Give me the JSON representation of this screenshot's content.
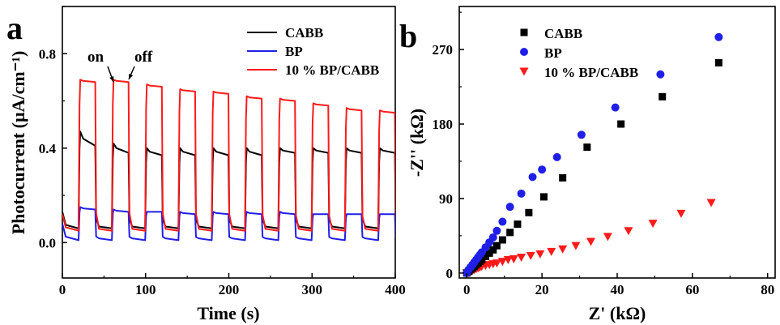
{
  "colors": {
    "black": "#000000",
    "blue": "#1f1fe8",
    "red": "#ff1a1a"
  },
  "chart_data": [
    {
      "panel_label": "a",
      "type": "line",
      "xlabel": "Time (s)",
      "ylabel": "Photocurrent (µA/cm⁻¹)",
      "xlim": [
        0,
        400
      ],
      "ylim": [
        -0.15,
        1.0
      ],
      "x_ticks": [
        0,
        100,
        200,
        300,
        400
      ],
      "y_ticks": [
        0.0,
        0.4,
        0.8
      ],
      "x_tick_labels": [
        "0",
        "100",
        "200",
        "300",
        "400"
      ],
      "y_tick_labels": [
        "0.0",
        "0.4",
        "0.8"
      ],
      "legend_position": "top-right",
      "annotations": [
        {
          "text": "on",
          "x": 62,
          "y": 0.69
        },
        {
          "text": "off",
          "x": 79,
          "y": 0.69
        }
      ],
      "cycles": {
        "on_times": [
          20,
          60,
          100,
          140,
          180,
          220,
          260,
          300,
          340,
          380
        ],
        "on_duration": 20
      },
      "series": [
        {
          "name": "CABB",
          "color": "black",
          "dark": 0.06,
          "light_peak": [
            0.47,
            0.42,
            0.4,
            0.4,
            0.4,
            0.4,
            0.4,
            0.4,
            0.4,
            0.4
          ],
          "light_plateau": [
            0.41,
            0.38,
            0.37,
            0.37,
            0.37,
            0.37,
            0.38,
            0.38,
            0.38,
            0.38
          ]
        },
        {
          "name": "BP",
          "color": "blue",
          "dark": 0.01,
          "light_peak": [
            0.15,
            0.14,
            0.13,
            0.13,
            0.13,
            0.13,
            0.13,
            0.12,
            0.12,
            0.12
          ],
          "light_plateau": [
            0.14,
            0.13,
            0.13,
            0.12,
            0.12,
            0.12,
            0.12,
            0.12,
            0.12,
            0.12
          ]
        },
        {
          "name": "10 % BP/CABB",
          "color": "red",
          "dark": 0.05,
          "light_peak": [
            0.69,
            0.69,
            0.67,
            0.65,
            0.64,
            0.62,
            0.61,
            0.59,
            0.57,
            0.56
          ],
          "light_plateau": [
            0.68,
            0.68,
            0.66,
            0.64,
            0.63,
            0.61,
            0.6,
            0.58,
            0.56,
            0.55
          ]
        }
      ]
    },
    {
      "panel_label": "b",
      "type": "scatter",
      "xlabel": "Z' (kΩ)",
      "ylabel": "-Z'' (kΩ)",
      "xlim": [
        -2,
        82
      ],
      "ylim": [
        -6,
        322
      ],
      "x_ticks": [
        0,
        20,
        40,
        60,
        80
      ],
      "y_ticks": [
        0,
        90,
        180,
        270
      ],
      "x_tick_labels": [
        "0",
        "20",
        "40",
        "60",
        "80"
      ],
      "y_tick_labels": [
        "0",
        "90",
        "180",
        "270"
      ],
      "legend_position": "top-left",
      "series": [
        {
          "name": "CABB",
          "color": "black",
          "marker": "square",
          "x": [
            0,
            0.5,
            1,
            1.5,
            2,
            2.5,
            3,
            3.5,
            4,
            5,
            6,
            7,
            8,
            9.5,
            11.5,
            13.5,
            16.5,
            20.5,
            25.5,
            32,
            41,
            52,
            67
          ],
          "y": [
            0,
            2,
            4,
            6,
            8,
            10,
            12,
            14,
            16,
            20,
            24,
            28,
            33,
            40,
            49,
            59,
            73,
            92,
            115,
            152,
            180,
            213,
            254
          ]
        },
        {
          "name": "BP",
          "color": "blue",
          "marker": "circle",
          "x": [
            0,
            0.5,
            1,
            1.5,
            2,
            2.5,
            3,
            3.5,
            4,
            5,
            6,
            7,
            8,
            9.5,
            11.5,
            14.5,
            17.5,
            20,
            24,
            30.5,
            39.5,
            51.5,
            67
          ],
          "y": [
            0,
            4,
            7,
            10,
            13,
            16,
            19,
            22,
            25,
            31,
            37,
            43,
            51,
            62,
            80,
            96,
            116,
            125,
            140,
            167,
            200,
            240,
            285
          ]
        },
        {
          "name": "10 % BP/CABB",
          "color": "red",
          "marker": "triangle-down",
          "x": [
            0,
            0.5,
            1,
            1.5,
            2,
            2.5,
            3,
            3.5,
            4,
            5,
            6,
            7,
            8,
            9.5,
            11,
            12.5,
            14.5,
            17,
            19.5,
            22.5,
            25.5,
            29,
            33,
            37.5,
            43,
            49.5,
            57,
            65
          ],
          "y": [
            0,
            1,
            2,
            3,
            4,
            5,
            6,
            7,
            8,
            9,
            10,
            11,
            12,
            14,
            16,
            17,
            19,
            21,
            23,
            26,
            29,
            33,
            38,
            44,
            51,
            60,
            72,
            85
          ]
        }
      ]
    }
  ]
}
